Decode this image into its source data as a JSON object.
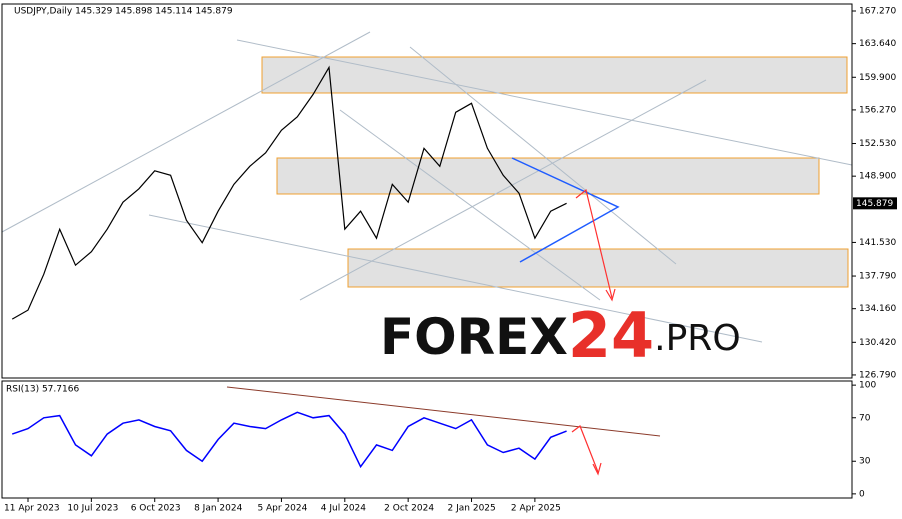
{
  "chart_data": [
    {
      "type": "line",
      "title": "USDJPY,Daily  145.329 145.898 145.114 145.879",
      "categories": [
        null,
        "11 Apr 2023",
        null,
        null,
        null,
        "10 Jul 2023",
        null,
        null,
        null,
        "6 Oct 2023",
        null,
        null,
        null,
        "8 Jan 2024",
        null,
        null,
        null,
        "5 Apr 2024",
        null,
        null,
        null,
        "4 Jul 2024",
        null,
        null,
        null,
        "2 Oct 2024",
        null,
        null,
        null,
        "2 Jan 2025",
        null,
        null,
        null,
        "2 Apr 2025",
        null,
        null
      ],
      "series": [
        {
          "name": "USDJPY",
          "color": "#000000",
          "values": [
            133,
            134,
            138,
            143,
            139,
            140.5,
            143,
            146,
            147.5,
            149.5,
            149,
            144,
            141.5,
            145,
            148,
            150,
            151.5,
            154,
            155.5,
            158,
            161,
            143,
            145,
            142,
            148,
            146,
            152,
            150,
            156,
            157,
            152,
            149,
            147,
            142,
            145,
            145.879
          ]
        }
      ],
      "ylim": [
        126.45,
        168.05
      ],
      "yticks": [
        {
          "value": 126.79,
          "label": "126.790"
        },
        {
          "value": 130.42,
          "label": "130.420"
        },
        {
          "value": 134.16,
          "label": "134.160"
        },
        {
          "value": 137.79,
          "label": "137.790"
        },
        {
          "value": 141.53,
          "label": "141.530"
        },
        {
          "value": 148.9,
          "label": "148.900"
        },
        {
          "value": 152.53,
          "label": "152.530"
        },
        {
          "value": 156.27,
          "label": "156.270"
        },
        {
          "value": 159.9,
          "label": "159.900"
        },
        {
          "value": 163.64,
          "label": "163.640"
        },
        {
          "value": 167.27,
          "label": "167.270"
        }
      ],
      "grid": false,
      "watermark": {
        "brand": "FOREX",
        "number": "24",
        "domain": ".PRO"
      }
    },
    {
      "type": "line",
      "title": "RSI(13) 57.7166",
      "series": [
        {
          "name": "RSI(13)",
          "color": "#0000ff",
          "values": [
            55,
            60,
            70,
            72,
            45,
            35,
            55,
            65,
            68,
            62,
            58,
            40,
            30,
            50,
            65,
            62,
            60,
            68,
            75,
            70,
            72,
            55,
            25,
            45,
            40,
            62,
            70,
            65,
            60,
            68,
            45,
            38,
            42,
            32,
            52,
            57.7166
          ]
        }
      ],
      "ylim": [
        -3.8,
        103.8
      ],
      "yticks": [
        0,
        30,
        70,
        100
      ],
      "grid": false
    }
  ]
}
